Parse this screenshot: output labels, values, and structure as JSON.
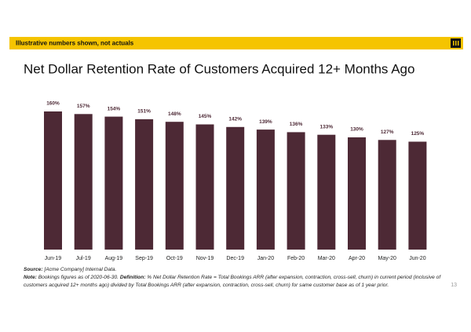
{
  "banner": "Illustrative numbers shown, not actuals",
  "chart_data": {
    "type": "bar",
    "title": "Net Dollar Retention Rate of Customers Acquired 12+ Months Ago",
    "categories": [
      "Jun-19",
      "Jul-19",
      "Aug-19",
      "Sep-19",
      "Oct-19",
      "Nov-19",
      "Dec-19",
      "Jan-20",
      "Feb-20",
      "Mar-20",
      "Apr-20",
      "May-20",
      "Jun-20"
    ],
    "values": [
      160,
      157,
      154,
      151,
      148,
      145,
      142,
      139,
      136,
      133,
      130,
      127,
      125
    ],
    "value_labels": [
      "160%",
      "157%",
      "154%",
      "151%",
      "148%",
      "145%",
      "142%",
      "139%",
      "136%",
      "133%",
      "130%",
      "127%",
      "125%"
    ],
    "color": "#4d2935"
  },
  "footnotes": {
    "source_label": "Source:",
    "source_text": "[Acme Company] Internal Data.",
    "note_label": "Note:",
    "note_text": "Bookings figures as of 2020-06-30.",
    "definition_label": "Definition:",
    "definition_text": "% Net Dollar Retention Rate = Total Bookings ARR (after expansion, contraction, cross-sell, churn) in current period (inclusive of customers acquired 12+ months ago) divided by Total Bookings ARR (after expansion, contraction, cross-sell, churn) for same customer base as of 1 year prior."
  },
  "page_number": "13"
}
